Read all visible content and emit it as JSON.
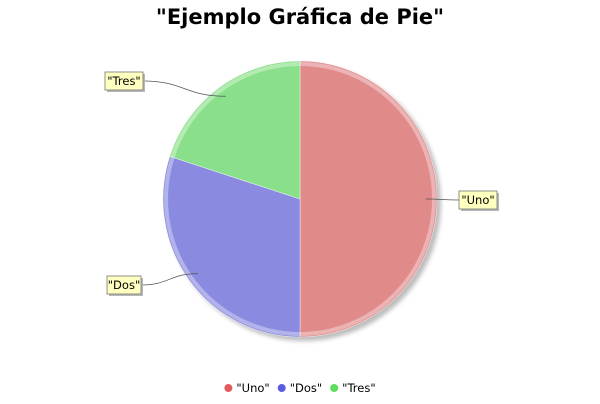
{
  "chart_data": {
    "type": "pie",
    "title": "\"Ejemplo Gráfica de Pie\"",
    "slices": [
      {
        "label": "\"Uno\"",
        "value": 50,
        "color": "#E08A8A"
      },
      {
        "label": "\"Dos\"",
        "value": 30,
        "color": "#8A8AE0"
      },
      {
        "label": "\"Tres\"",
        "value": 20,
        "color": "#8AE08A"
      }
    ],
    "legend": {
      "placement": "bottom",
      "entries": [
        {
          "label": "\"Uno\"",
          "color": "#E05C5C"
        },
        {
          "label": "\"Dos\"",
          "color": "#5C5CE0"
        },
        {
          "label": "\"Tres\"",
          "color": "#5CE05C"
        }
      ]
    },
    "label_box_color": "#FFFFC0"
  }
}
